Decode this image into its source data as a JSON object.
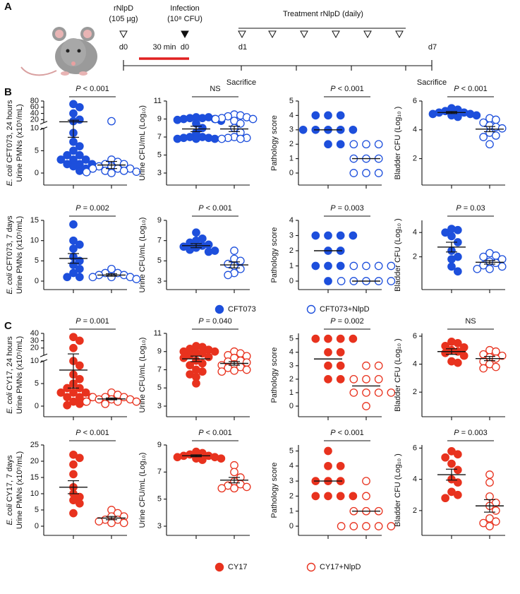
{
  "panel_labels": [
    "A",
    "B",
    "C"
  ],
  "timeline": {
    "pre_treatment": "rNlpD",
    "pre_dose": "(105 µg)",
    "pre_day": "d0",
    "interval": "30 min",
    "infection": "Infection",
    "infection_dose": "(10⁸ CFU)",
    "infection_day": "d0",
    "treatment": "Treatment rNlpD (daily)",
    "day_start": "d1",
    "day_end": "d7",
    "sacrifice_1": "Sacrifice",
    "sacrifice_2": "Sacrifice"
  },
  "row_labels": [
    "E. coli CFT073, 24 hours",
    "E. coli CFT073, 7 days",
    "E. coli CY17, 24 hours",
    "E. coli CY17, 7 days"
  ],
  "legends": [
    {
      "items": [
        {
          "name": "CFT073",
          "color": "#1d4fdc",
          "filled": true
        },
        {
          "name": "CFT073+NlpD",
          "color": "#1d4fdc",
          "filled": false
        }
      ]
    },
    {
      "items": [
        {
          "name": "CY17",
          "color": "#e8321e",
          "filled": true
        },
        {
          "name": "CY17+NlpD",
          "color": "#e8321e",
          "filled": false
        }
      ]
    }
  ],
  "chart_data": [
    {
      "type": "dot",
      "ylabel": "Urine PMNs (x10⁵/mL)",
      "stat": "P < 0.001",
      "ylim": [
        0,
        80
      ],
      "ybreak": 10,
      "yticks": [
        0,
        5,
        10,
        20,
        40,
        60,
        80
      ],
      "series": [
        {
          "color": "#1d4fdc",
          "filled": true,
          "values": [
            70,
            60,
            40,
            20,
            15,
            9,
            7,
            6,
            5,
            4,
            4,
            3,
            3,
            3,
            2,
            2,
            2,
            1.5,
            1,
            0.5
          ],
          "mean": 13,
          "sem": 5
        },
        {
          "color": "#1d4fdc",
          "filled": false,
          "values": [
            15,
            3,
            2.5,
            2,
            2,
            1.5,
            1.5,
            1,
            1,
            1,
            0.5,
            0.5,
            0.3,
            0.2,
            0
          ],
          "mean": 1.8,
          "sem": 0.8
        }
      ]
    },
    {
      "type": "dot",
      "ylabel": "Urine CFU/mL (Log₁₀)",
      "stat": "NS",
      "ylim": [
        3,
        11
      ],
      "yticks": [
        3,
        5,
        7,
        9,
        11
      ],
      "series": [
        {
          "color": "#1d4fdc",
          "filled": true,
          "values": [
            9.2,
            9.2,
            9.1,
            9.1,
            9,
            9,
            8.9,
            8.8,
            8.5,
            8,
            7.5,
            7,
            7,
            6.9,
            6.9,
            6.8,
            6.8,
            6.8
          ],
          "mean": 7.9,
          "sem": 0.3
        },
        {
          "color": "#1d4fdc",
          "filled": false,
          "values": [
            9.5,
            9.4,
            9.3,
            9.2,
            9.1,
            9,
            9,
            8.8,
            8.5,
            8,
            7.5,
            7,
            6.9,
            6.9,
            6.8,
            6.8
          ],
          "mean": 7.9,
          "sem": 0.3
        }
      ]
    },
    {
      "type": "dot",
      "ylabel": "Pathology score",
      "stat": "P < 0.001",
      "ylim": [
        0,
        5
      ],
      "yticks": [
        0,
        1,
        2,
        3,
        4,
        5
      ],
      "series": [
        {
          "color": "#1d4fdc",
          "filled": true,
          "values": [
            4,
            4,
            4,
            3,
            3,
            3,
            3,
            3,
            2,
            2
          ],
          "mean": 3,
          "sem": 0
        },
        {
          "color": "#1d4fdc",
          "filled": false,
          "values": [
            2,
            2,
            2,
            1,
            1,
            1,
            0,
            0,
            0
          ],
          "mean": 1,
          "sem": 0
        }
      ]
    },
    {
      "type": "dot",
      "ylabel": "Bladder CFU (Log₁₀ )",
      "stat": "P < 0.001",
      "ylim": [
        1,
        6
      ],
      "yticks": [
        2,
        4,
        6
      ],
      "series": [
        {
          "color": "#1d4fdc",
          "filled": true,
          "values": [
            5.5,
            5.4,
            5.3,
            5.2,
            5.2,
            5.1,
            5.1,
            5,
            5,
            4.9
          ],
          "mean": 5.2,
          "sem": 0.07
        },
        {
          "color": "#1d4fdc",
          "filled": false,
          "values": [
            4.8,
            4.7,
            4.5,
            4.3,
            4.2,
            4.1,
            3.8,
            3.6,
            3.5,
            3
          ],
          "mean": 4.05,
          "sem": 0.18
        }
      ]
    },
    {
      "type": "dot",
      "ylabel": "Urine PMNs (x10⁵/mL)",
      "stat": "P = 0.002",
      "ylim": [
        0,
        15
      ],
      "yticks": [
        0,
        5,
        10,
        15
      ],
      "series": [
        {
          "color": "#1d4fdc",
          "filled": true,
          "values": [
            14,
            10,
            9,
            8,
            6,
            5,
            4,
            3,
            2,
            1,
            1
          ],
          "mean": 5.6,
          "sem": 1.2
        },
        {
          "color": "#1d4fdc",
          "filled": false,
          "values": [
            3,
            2,
            2,
            1.5,
            1.5,
            1,
            1,
            1,
            0.5
          ],
          "mean": 1.5,
          "sem": 0.3
        }
      ]
    },
    {
      "type": "dot",
      "ylabel": "Urine CFU/mL (Log₁₀)",
      "stat": "P < 0.001",
      "ylim": [
        3,
        9
      ],
      "yticks": [
        3,
        5,
        7,
        9
      ],
      "series": [
        {
          "color": "#1d4fdc",
          "filled": true,
          "values": [
            7.8,
            7.2,
            7,
            6.8,
            6.6,
            6.5,
            6.4,
            6.3,
            6.1,
            6,
            5.9
          ],
          "mean": 6.5,
          "sem": 0.2
        },
        {
          "color": "#1d4fdc",
          "filled": false,
          "values": [
            6,
            5.2,
            5,
            4.7,
            4.5,
            4.2,
            3.8,
            3.6
          ],
          "mean": 4.6,
          "sem": 0.3
        }
      ]
    },
    {
      "type": "dot",
      "ylabel": "Pathology score",
      "stat": "P = 0.003",
      "ylim": [
        0,
        4
      ],
      "yticks": [
        0,
        1,
        2,
        3,
        4
      ],
      "series": [
        {
          "color": "#1d4fdc",
          "filled": true,
          "values": [
            3,
            3,
            3,
            3,
            2,
            2,
            1,
            1,
            1,
            0
          ],
          "mean": 2,
          "sem": 0
        },
        {
          "color": "#1d4fdc",
          "filled": false,
          "values": [
            1,
            1,
            1,
            1,
            0,
            0,
            0,
            0,
            0
          ],
          "mean": 0,
          "sem": 0
        }
      ]
    },
    {
      "type": "dot",
      "ylabel": "Bladder CFU (Log₁₀ )",
      "stat": "P = 0.03",
      "ylim": [
        0,
        5
      ],
      "yticks": [
        2,
        4
      ],
      "series": [
        {
          "color": "#1d4fdc",
          "filled": true,
          "values": [
            4.3,
            4.2,
            4,
            3.7,
            3.2,
            2.5,
            2,
            1.8,
            1.2,
            0.8
          ],
          "mean": 2.8,
          "sem": 0.4
        },
        {
          "color": "#1d4fdc",
          "filled": false,
          "values": [
            2.3,
            2.1,
            2,
            1.8,
            1.6,
            1.5,
            1.3,
            1.2,
            1,
            1
          ],
          "mean": 1.55,
          "sem": 0.15
        }
      ]
    },
    {
      "type": "dot",
      "ylabel": "Urine PMNs (x10⁵/mL)",
      "stat": "P = 0.001",
      "ylim": [
        0,
        40
      ],
      "ybreak": 10,
      "yticks": [
        0,
        5,
        10,
        20,
        30,
        40
      ],
      "series": [
        {
          "color": "#e8321e",
          "filled": true,
          "values": [
            35,
            30,
            20,
            10,
            9,
            7,
            6,
            5,
            4,
            4,
            3,
            3,
            3,
            2,
            2,
            2,
            1,
            1,
            0.5,
            0.2
          ],
          "mean": 8,
          "sem": 4
        },
        {
          "color": "#e8321e",
          "filled": false,
          "values": [
            3,
            2.5,
            2,
            2,
            2,
            1.5,
            1.5,
            1.5,
            1,
            1,
            1,
            0.5
          ],
          "mean": 1.6,
          "sem": 0.2
        }
      ]
    },
    {
      "type": "dot",
      "ylabel": "Urine CFU/mL (Log₁₀)",
      "stat": "P = 0.040",
      "ylim": [
        3,
        11
      ],
      "yticks": [
        3,
        5,
        7,
        9,
        11
      ],
      "series": [
        {
          "color": "#e8321e",
          "filled": true,
          "values": [
            9.6,
            9.5,
            9.3,
            9.2,
            9,
            9,
            8.9,
            8.8,
            8.6,
            8.4,
            8.3,
            8,
            7.7,
            7.5,
            7,
            6.8,
            6.5,
            6.2,
            5.5
          ],
          "mean": 8.2,
          "sem": 0.3
        },
        {
          "color": "#e8321e",
          "filled": false,
          "values": [
            9,
            8.8,
            8.6,
            8.5,
            8.3,
            8,
            7.9,
            7.8,
            7.6,
            7.5,
            7.3,
            7.2,
            7,
            6.9,
            6.8
          ],
          "mean": 7.7,
          "sem": 0.2
        }
      ]
    },
    {
      "type": "dot",
      "ylabel": "Pathology score",
      "stat": "P = 0.002",
      "ylim": [
        0,
        5.4
      ],
      "yticks": [
        0,
        1,
        2,
        3,
        4,
        5
      ],
      "series": [
        {
          "color": "#e8321e",
          "filled": true,
          "values": [
            5,
            5,
            5,
            5,
            4,
            4,
            3,
            3,
            2,
            2
          ],
          "mean": 3.5,
          "sem": 0
        },
        {
          "color": "#e8321e",
          "filled": false,
          "values": [
            3,
            3,
            2,
            2,
            2,
            1,
            1,
            1,
            1,
            0
          ],
          "mean": 1.5,
          "sem": 0
        }
      ]
    },
    {
      "type": "dot",
      "ylabel": "Bladder CFU (Log₁₀ )",
      "stat": "NS",
      "ylim": [
        1,
        6.2
      ],
      "yticks": [
        2,
        4,
        6
      ],
      "series": [
        {
          "color": "#e8321e",
          "filled": true,
          "values": [
            5.6,
            5.5,
            5.3,
            5.2,
            5,
            4.9,
            4.8,
            4.6,
            4.2,
            4.1
          ],
          "mean": 4.9,
          "sem": 0.2
        },
        {
          "color": "#e8321e",
          "filled": false,
          "values": [
            5,
            4.9,
            4.7,
            4.6,
            4.5,
            4.4,
            4.2,
            4,
            3.8,
            3.7
          ],
          "mean": 4.4,
          "sem": 0.15
        }
      ]
    },
    {
      "type": "dot",
      "ylabel": "Urine PMNs (x10⁵/mL)",
      "stat": "P < 0.001",
      "ylim": [
        0,
        25
      ],
      "yticks": [
        0,
        5,
        10,
        15,
        20,
        25
      ],
      "series": [
        {
          "color": "#e8321e",
          "filled": true,
          "values": [
            22,
            21,
            19,
            16,
            12,
            10,
            9,
            8,
            7,
            4
          ],
          "mean": 12,
          "sem": 2
        },
        {
          "color": "#e8321e",
          "filled": false,
          "values": [
            5,
            4,
            3,
            3,
            2,
            2,
            1.5,
            1,
            1
          ],
          "mean": 2.5,
          "sem": 0.5
        }
      ]
    },
    {
      "type": "dot",
      "ylabel": "Urine CFU/mL (Log₁₀)",
      "stat": "P < 0.001",
      "ylim": [
        3,
        9
      ],
      "yticks": [
        3,
        5,
        7,
        9
      ],
      "series": [
        {
          "color": "#e8321e",
          "filled": true,
          "values": [
            8.5,
            8.4,
            8.3,
            8.2,
            8.2,
            8.1,
            8.1,
            8,
            8,
            7.9
          ],
          "mean": 8.2,
          "sem": 0.07
        },
        {
          "color": "#e8321e",
          "filled": false,
          "values": [
            7.5,
            7,
            6.6,
            6.3,
            6.1,
            6,
            5.9,
            5.8,
            5.8
          ],
          "mean": 6.4,
          "sem": 0.2
        }
      ]
    },
    {
      "type": "dot",
      "ylabel": "Pathology score",
      "stat": "P < 0.001",
      "ylim": [
        0,
        5.4
      ],
      "yticks": [
        0,
        1,
        2,
        3,
        4,
        5
      ],
      "series": [
        {
          "color": "#e8321e",
          "filled": true,
          "values": [
            5,
            4,
            4,
            3,
            3,
            3,
            2,
            2,
            2,
            2
          ],
          "mean": 3,
          "sem": 0
        },
        {
          "color": "#e8321e",
          "filled": false,
          "values": [
            3,
            2,
            1,
            1,
            1,
            0,
            0,
            0,
            0,
            0
          ],
          "mean": 1,
          "sem": 0
        }
      ]
    },
    {
      "type": "dot",
      "ylabel": "Bladder CFU (Log₁₀ )",
      "stat": "P = 0.003",
      "ylim": [
        1,
        6.2
      ],
      "yticks": [
        2,
        4,
        6
      ],
      "series": [
        {
          "color": "#e8321e",
          "filled": true,
          "values": [
            5.8,
            5.6,
            5.4,
            5,
            4.6,
            4,
            3.8,
            3.2,
            3,
            2.8
          ],
          "mean": 4.3,
          "sem": 0.35
        },
        {
          "color": "#e8321e",
          "filled": false,
          "values": [
            4.3,
            3.8,
            2.9,
            2.5,
            2.3,
            2,
            1.5,
            1.3,
            1.2,
            1
          ],
          "mean": 2.3,
          "sem": 0.4
        }
      ]
    }
  ]
}
